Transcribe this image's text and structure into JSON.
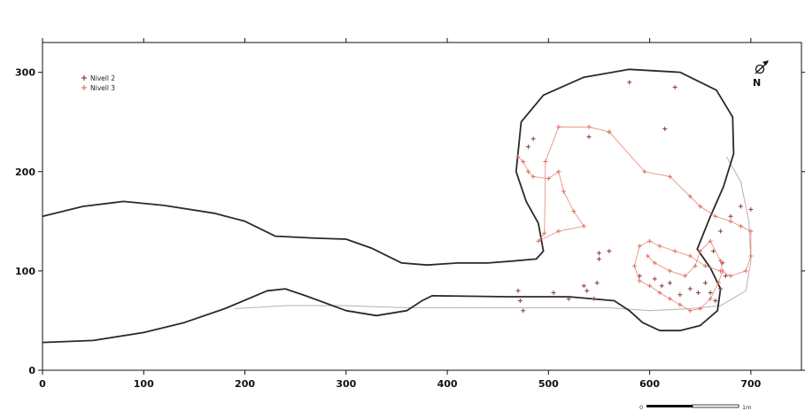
{
  "chart_data": {
    "type": "scatter",
    "xlim": [
      0,
      750
    ],
    "ylim": [
      0,
      330
    ],
    "x_ticks": [
      "0",
      "100",
      "200",
      "300",
      "400",
      "500",
      "600",
      "700"
    ],
    "y_ticks": [
      "0",
      "100",
      "200",
      "300"
    ],
    "grid": false,
    "legend_position": "top-left",
    "north_label": "N",
    "scale_bar": {
      "start_label": "0",
      "end_label": "1m"
    },
    "colors": {
      "cave_outline": "#2a2a2a",
      "lower_outline": "#b8b8b8",
      "nivell2": "#8b3a3a",
      "nivell3": "#e07060"
    },
    "cave_outline": [
      [
        0,
        155
      ],
      [
        40,
        165
      ],
      [
        80,
        170
      ],
      [
        120,
        166
      ],
      [
        170,
        158
      ],
      [
        200,
        150
      ],
      [
        230,
        135
      ],
      [
        270,
        133
      ],
      [
        300,
        132
      ],
      [
        325,
        123
      ],
      [
        355,
        108
      ],
      [
        380,
        106
      ],
      [
        410,
        108
      ],
      [
        440,
        108
      ],
      [
        465,
        110
      ],
      [
        488,
        112
      ],
      [
        495,
        120
      ],
      [
        490,
        148
      ],
      [
        478,
        170
      ],
      [
        468,
        200
      ],
      [
        473,
        250
      ],
      [
        495,
        277
      ],
      [
        535,
        295
      ],
      [
        580,
        303
      ],
      [
        630,
        300
      ],
      [
        666,
        282
      ],
      [
        682,
        255
      ],
      [
        683,
        218
      ],
      [
        673,
        185
      ],
      [
        660,
        155
      ],
      [
        647,
        122
      ],
      [
        660,
        103
      ],
      [
        670,
        82
      ],
      [
        667,
        60
      ],
      [
        650,
        45
      ],
      [
        630,
        40
      ],
      [
        610,
        40
      ],
      [
        593,
        48
      ],
      [
        580,
        60
      ],
      [
        565,
        70
      ],
      [
        520,
        74
      ],
      [
        460,
        74
      ],
      [
        385,
        75
      ],
      [
        375,
        70
      ],
      [
        360,
        60
      ],
      [
        330,
        55
      ],
      [
        300,
        60
      ],
      [
        260,
        75
      ],
      [
        240,
        82
      ],
      [
        222,
        80
      ],
      [
        180,
        62
      ],
      [
        140,
        48
      ],
      [
        100,
        38
      ],
      [
        50,
        30
      ],
      [
        0,
        28
      ]
    ],
    "lower_outline": [
      [
        190,
        62
      ],
      [
        240,
        65
      ],
      [
        300,
        65
      ],
      [
        360,
        63
      ],
      [
        430,
        63
      ],
      [
        500,
        63
      ],
      [
        560,
        63
      ],
      [
        600,
        60
      ],
      [
        640,
        62
      ],
      [
        670,
        65
      ],
      [
        695,
        80
      ],
      [
        700,
        110
      ],
      [
        698,
        150
      ],
      [
        690,
        190
      ],
      [
        676,
        215
      ]
    ],
    "series": [
      {
        "name": "Nivell 2",
        "points": [
          [
            480,
            225
          ],
          [
            485,
            233
          ],
          [
            540,
            235
          ],
          [
            560,
            240
          ],
          [
            580,
            290
          ],
          [
            615,
            243
          ],
          [
            625,
            285
          ],
          [
            470,
            80
          ],
          [
            472,
            70
          ],
          [
            475,
            60
          ],
          [
            505,
            78
          ],
          [
            520,
            72
          ],
          [
            535,
            85
          ],
          [
            538,
            80
          ],
          [
            545,
            72
          ],
          [
            548,
            88
          ],
          [
            550,
            118
          ],
          [
            550,
            112
          ],
          [
            560,
            120
          ],
          [
            590,
            95
          ],
          [
            605,
            92
          ],
          [
            612,
            85
          ],
          [
            620,
            88
          ],
          [
            630,
            76
          ],
          [
            640,
            82
          ],
          [
            648,
            78
          ],
          [
            655,
            88
          ],
          [
            660,
            78
          ],
          [
            665,
            70
          ],
          [
            670,
            82
          ],
          [
            675,
            95
          ],
          [
            672,
            108
          ],
          [
            663,
            120
          ],
          [
            670,
            140
          ],
          [
            680,
            155
          ],
          [
            690,
            165
          ],
          [
            700,
            162
          ]
        ]
      },
      {
        "name": "Nivell 3",
        "points": [
          [
            470,
            215
          ],
          [
            475,
            210
          ],
          [
            480,
            200
          ],
          [
            485,
            195
          ],
          [
            500,
            193
          ],
          [
            510,
            200
          ],
          [
            515,
            180
          ],
          [
            525,
            160
          ],
          [
            535,
            145
          ],
          [
            510,
            140
          ],
          [
            490,
            130
          ],
          [
            496,
            138
          ],
          [
            497,
            210
          ],
          [
            510,
            245
          ],
          [
            540,
            245
          ],
          [
            560,
            240
          ],
          [
            595,
            200
          ],
          [
            620,
            195
          ],
          [
            640,
            175
          ],
          [
            650,
            165
          ],
          [
            665,
            155
          ],
          [
            680,
            150
          ],
          [
            690,
            145
          ],
          [
            700,
            140
          ],
          [
            700,
            115
          ],
          [
            695,
            100
          ],
          [
            680,
            95
          ],
          [
            670,
            100
          ],
          [
            655,
            105
          ],
          [
            640,
            115
          ],
          [
            625,
            120
          ],
          [
            610,
            125
          ],
          [
            600,
            130
          ],
          [
            590,
            125
          ],
          [
            585,
            105
          ],
          [
            590,
            90
          ],
          [
            600,
            85
          ],
          [
            610,
            78
          ],
          [
            620,
            72
          ],
          [
            630,
            66
          ],
          [
            640,
            60
          ],
          [
            650,
            62
          ],
          [
            660,
            72
          ],
          [
            668,
            88
          ],
          [
            672,
            100
          ],
          [
            670,
            110
          ],
          [
            660,
            130
          ],
          [
            650,
            120
          ],
          [
            645,
            105
          ],
          [
            635,
            95
          ],
          [
            620,
            100
          ],
          [
            605,
            108
          ],
          [
            598,
            115
          ]
        ]
      }
    ]
  },
  "legend": {
    "items": [
      {
        "label": "Nivell 2",
        "color": "#8b3a3a"
      },
      {
        "label": "Nivell 3",
        "color": "#e07060"
      }
    ]
  }
}
